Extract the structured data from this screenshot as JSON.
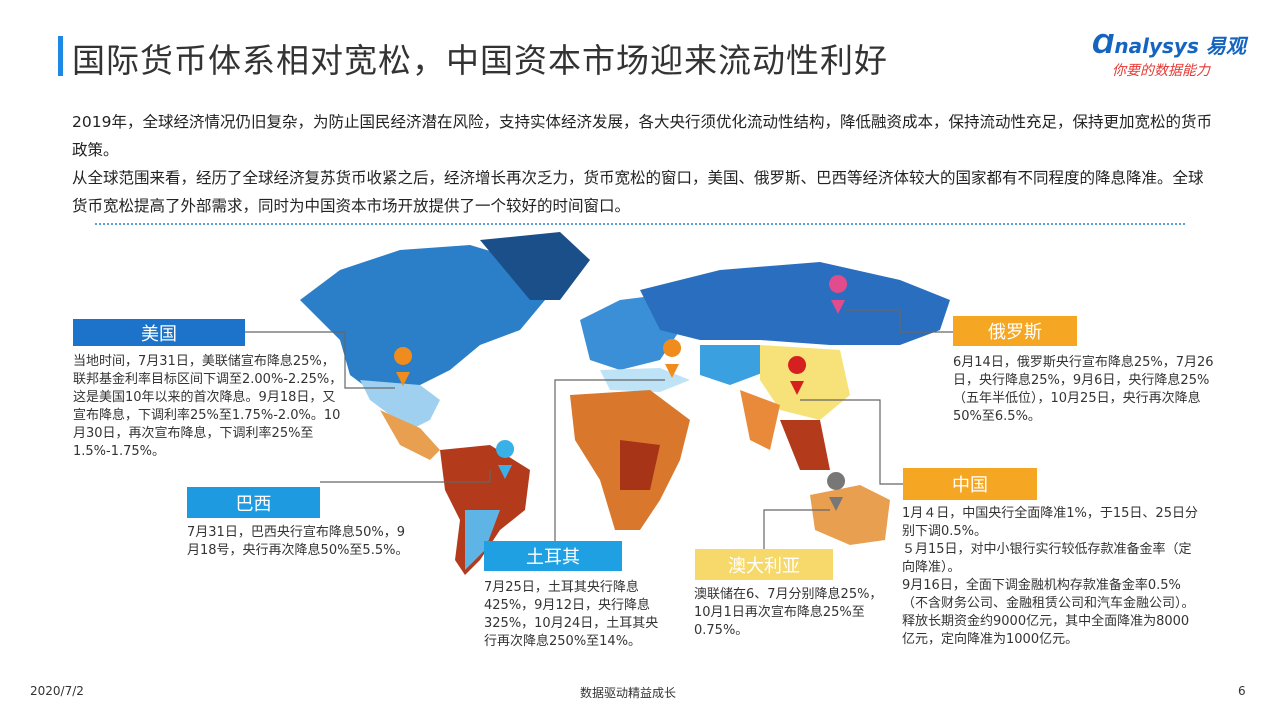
{
  "header": {
    "title": "国际货币体系相对宽松，中国资本市场迎来流动性利好",
    "logo_name": "nalysys",
    "logo_cn": "易观",
    "tagline": "你要的数据能力"
  },
  "intro": [
    "2019年，全球经济情况仍旧复杂，为防止国民经济潜在风险，支持实体经济发展，各大央行须优化流动性结构，降低融资成本，保持流动性充足，保持更加宽松的货币政策。",
    "从全球范围来看，经历了全球经济复苏货币收紧之后，经济增长再次乏力，货币宽松的窗口，美国、俄罗斯、巴西等经济体较大的国家都有不同程度的降息降准。全球货币宽松提高了外部需求，同时为中国资本市场开放提供了一个较好的时间窗口。"
  ],
  "callouts": [
    {
      "label": "美国",
      "text": [
        "当地时间，7月31日，美联储宣布降息25%，联邦基金利率目标区间下调至2.00%-2.25%，这是美国10年以来的首次降息。9月18日，又宣布降息，下调利率25%至1.75%-2.0%。10月30日，再次宣布降息，下调利率25%至1.5%-1.75%。"
      ]
    },
    {
      "label": "巴西",
      "text": [
        "7月31日，巴西央行宣布降息50%，9月18号，央行再次降息50%至5.5%。"
      ]
    },
    {
      "label": "土耳其",
      "text": [
        "7月25日，土耳其央行降息425%，9月12日，央行降息325%，10月24日，土耳其央行再次降息250%至14%。"
      ]
    },
    {
      "label": "澳大利亚",
      "text": [
        "澳联储在6、7月分别降息25%，10月1日再次宣布降息25%至0.75%。"
      ]
    },
    {
      "label": "俄罗斯",
      "text": [
        "6月14日，俄罗斯央行宣布降息25%，7月26日，央行降息25%，9月6日，央行降息25%（五年半低位），10月25日，央行再次降息50%至6.5%。"
      ]
    },
    {
      "label": "中国",
      "text": [
        "1月４日，中国央行全面降准1%，于15日、25日分别下调0.5%。",
        "５月15日，对中小银行实行较低存款准备金率（定向降准）。",
        "9月16日，全面下调金融机构存款准备金率0.5%（不含财务公司、金融租赁公司和汽车金融公司）。释放长期资金约9000亿元，其中全面降准为8000亿元，定向降准为1000亿元。"
      ]
    }
  ],
  "footer": {
    "date": "2020/7/2",
    "slogan": "数据驱动精益成长",
    "page": "6"
  }
}
